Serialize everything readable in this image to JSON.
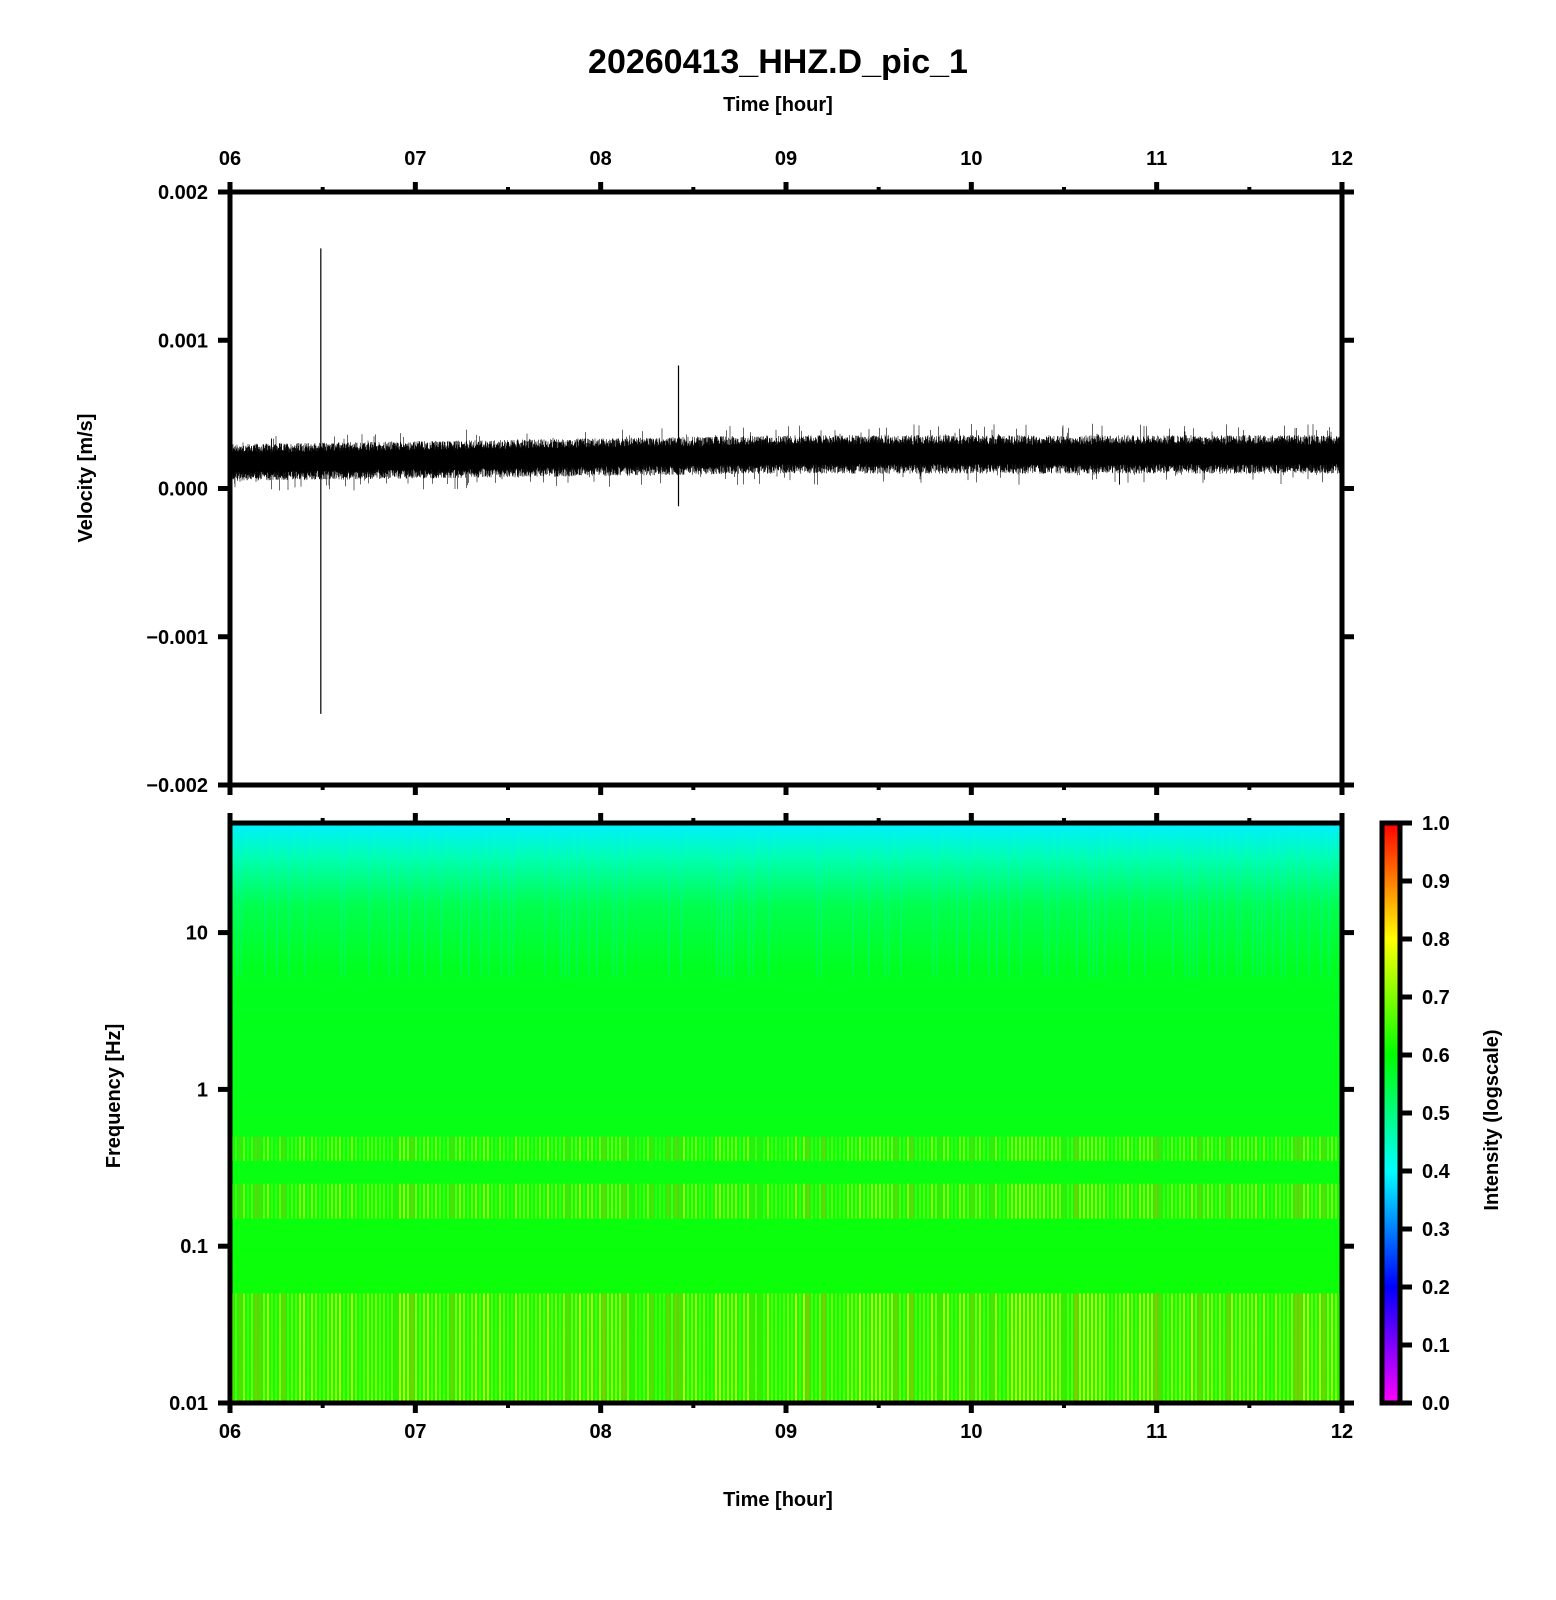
{
  "title": "20260413_HHZ.D_pic_1",
  "colors": {
    "frame": "#000000",
    "trace": "#000000",
    "background": "#ffffff"
  },
  "chart_data": [
    {
      "type": "line",
      "panel": "waveform",
      "xlabel": "Time [hour]",
      "ylabel": "Velocity [m/s]",
      "xlim": [
        6,
        12
      ],
      "ylim": [
        -0.002,
        0.002
      ],
      "x_tick_labels": [
        "06",
        "07",
        "08",
        "09",
        "10",
        "11",
        "12"
      ],
      "y_tick_labels": [
        "0.002",
        "0.001",
        "0.000",
        "−0.001",
        "−0.002"
      ],
      "grid": false,
      "series": [
        {
          "description_values": {
            "baseline_mean": 0.00017,
            "noise_band": [
              [
                6.0,
                5e-05,
                0.0003
              ],
              [
                9.0,
                0.0001,
                0.00036
              ],
              [
                12.0,
                0.0001,
                0.00036
              ]
            ]
          },
          "spikes": [
            {
              "x": 6.49,
              "max": 0.00162,
              "min": -0.00152
            },
            {
              "x": 8.42,
              "max": 0.00083,
              "min": -0.00012
            }
          ]
        }
      ]
    },
    {
      "type": "heatmap",
      "panel": "spectrogram",
      "xlabel": "Time [hour]",
      "ylabel": "Frequency [Hz]",
      "xlim": [
        6,
        12
      ],
      "ylim": [
        0.01,
        50
      ],
      "yscale": "log",
      "x_tick_labels": [
        "06",
        "07",
        "08",
        "09",
        "10",
        "11",
        "12"
      ],
      "y_tick_labels": [
        "10",
        "1",
        "0.1",
        "0.01"
      ],
      "intensity_by_frequency": [
        [
          50,
          0.42
        ],
        [
          20,
          0.5
        ],
        [
          10,
          0.57
        ],
        [
          1,
          0.6
        ],
        [
          0.4,
          0.7
        ],
        [
          0.1,
          0.66
        ],
        [
          0.01,
          0.72
        ]
      ],
      "colorbar": {
        "label": "Intensity (logscale)",
        "range": [
          0.0,
          1.0
        ],
        "tick_labels": [
          "1.0",
          "0.9",
          "0.8",
          "0.7",
          "0.6",
          "0.5",
          "0.4",
          "0.3",
          "0.2",
          "0.1",
          "0.0"
        ],
        "colormap": [
          "#ff00ff",
          "#0000ff",
          "#00ffff",
          "#00ff00",
          "#ffff00",
          "#ff0000"
        ]
      }
    }
  ]
}
